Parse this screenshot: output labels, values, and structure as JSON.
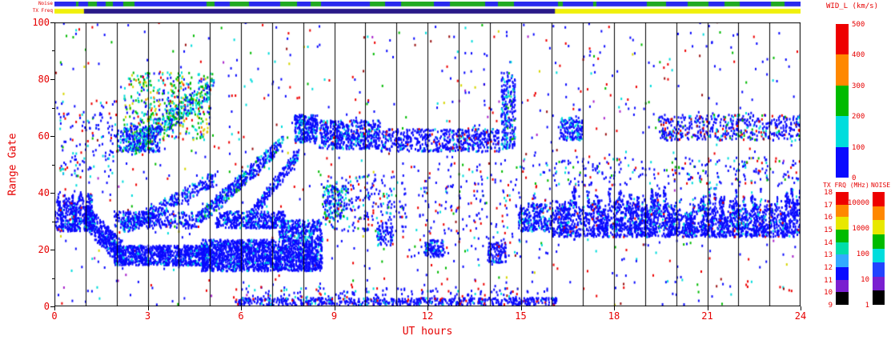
{
  "colors": {
    "text": "#e60000",
    "grid": "#000000",
    "bg": "#ffffff"
  },
  "palette": {
    "blue": "#0a0aff",
    "cyan": "#00dddd",
    "green": "#00bb00",
    "yellow": "#d6d600",
    "orange": "#ff8800",
    "red": "#ee0000",
    "darkred": "#991111",
    "purple": "#aa22cc",
    "black": "#000000",
    "lightblue": "#3377ff"
  },
  "strips": {
    "noise": {
      "label": "Noise",
      "base": "#2a2aee",
      "speckle": "#22aa22",
      "speckle_prob": 0.33
    },
    "txfreq": {
      "label": "TX Freq",
      "base": "#f0f00c",
      "segments": [
        {
          "t0": 0.95,
          "t1": 16.1,
          "color": "#2a1a88"
        }
      ]
    }
  },
  "chart_data": {
    "type": "scatter",
    "title": "WID_L (km/s)",
    "xlabel": "UT hours",
    "ylabel": "Range Gate",
    "xlim": [
      0,
      24
    ],
    "ylim": [
      0,
      100
    ],
    "xticks": [
      0,
      3,
      6,
      9,
      12,
      15,
      18,
      21,
      24
    ],
    "yticks": [
      0,
      20,
      40,
      60,
      80,
      100
    ],
    "grid": "vertical black line every 1 hour, full plot height",
    "legend_position": "right colorbars",
    "seed": 7,
    "point_size": [
      2,
      3
    ],
    "colorbars": {
      "wid": {
        "title": "WID_L (km/s)",
        "units": "km/s",
        "segments_top_to_bottom": [
          "#ee0000",
          "#ff8800",
          "#00bb00",
          "#00dddd",
          "#0a0aff"
        ],
        "ticks": [
          {
            "label": "500",
            "pos": 0.0
          },
          {
            "label": "400",
            "pos": 0.2
          },
          {
            "label": "300",
            "pos": 0.4
          },
          {
            "label": "200",
            "pos": 0.6
          },
          {
            "label": "100",
            "pos": 0.8
          },
          {
            "label": "0",
            "pos": 1.0
          }
        ]
      },
      "txfrq": {
        "title": "TX FRQ (MHz)",
        "units": "MHz",
        "segments_top_to_bottom": [
          "#ee0000",
          "#ff8800",
          "#e8e800",
          "#00bb00",
          "#00ddaa",
          "#33aaff",
          "#0a0aff",
          "#7a1fd0",
          "#000000"
        ],
        "ticks": [
          {
            "label": "18",
            "pos": 0.0
          },
          {
            "label": "17",
            "pos": 0.111
          },
          {
            "label": "16",
            "pos": 0.222
          },
          {
            "label": "15",
            "pos": 0.333
          },
          {
            "label": "14",
            "pos": 0.444
          },
          {
            "label": "13",
            "pos": 0.556
          },
          {
            "label": "12",
            "pos": 0.667
          },
          {
            "label": "11",
            "pos": 0.778
          },
          {
            "label": "10",
            "pos": 0.889
          },
          {
            "label": "9",
            "pos": 1.0
          }
        ]
      },
      "noise": {
        "title": "NOISE",
        "units": "",
        "segments_top_to_bottom": [
          "#ee0000",
          "#ff8800",
          "#e8e800",
          "#00bb00",
          "#00dddd",
          "#2244ff",
          "#7a1fd0",
          "#000000"
        ],
        "ticks": [
          {
            "label": "10000",
            "pos": 0.09
          },
          {
            "label": "1000",
            "pos": 0.3175
          },
          {
            "label": "100",
            "pos": 0.545
          },
          {
            "label": "10",
            "pos": 0.7725
          },
          {
            "label": "1",
            "pos": 1.0
          }
        ]
      }
    },
    "features": [
      {
        "id": "background-sparse",
        "t0": 0,
        "t1": 24,
        "g0": 0,
        "g1": 100,
        "n": 950,
        "colors": {
          "blue": 0.5,
          "red": 0.2,
          "cyan": 0.1,
          "green": 0.08,
          "darkred": 0.06,
          "yellow": 0.03,
          "purple": 0.03
        }
      },
      {
        "id": "band-early",
        "type": "columns",
        "t0": 0,
        "t1": 1.15,
        "g0": 26,
        "g1": 41,
        "n": 420,
        "colors": {
          "blue": 0.85,
          "cyan": 0.1,
          "red": 0.05
        }
      },
      {
        "id": "descend-1-2h",
        "type": "diag",
        "t0": 1.0,
        "t1": 2.15,
        "g0": 31,
        "g1": 18,
        "thick": 9,
        "n": 420,
        "colors": {
          "blue": 0.9,
          "cyan": 0.1
        }
      },
      {
        "id": "low-band-2-5h",
        "t0": 1.9,
        "t1": 4.9,
        "g0": 14,
        "g1": 21,
        "n": 850,
        "colors": {
          "blue": 0.92,
          "cyan": 0.08
        }
      },
      {
        "id": "low-blob-5-8.6h",
        "t0": 4.7,
        "t1": 8.6,
        "g0": 12,
        "g1": 23,
        "n": 1750,
        "colors": {
          "blue": 0.93,
          "cyan": 0.07
        }
      },
      {
        "id": "blob-tail-7-8.6h",
        "t0": 7.2,
        "t1": 8.6,
        "g0": 23,
        "g1": 30,
        "n": 260,
        "colors": {
          "blue": 0.8,
          "cyan": 0.2
        }
      },
      {
        "id": "mid-band-2-4.6h",
        "t0": 1.9,
        "t1": 4.6,
        "g0": 27,
        "g1": 33,
        "n": 280,
        "colors": {
          "blue": 0.85,
          "cyan": 0.15
        }
      },
      {
        "id": "mid-band-5-7.4h",
        "t0": 5.2,
        "t1": 7.4,
        "g0": 27,
        "g1": 33,
        "n": 380,
        "colors": {
          "blue": 0.88,
          "cyan": 0.12
        }
      },
      {
        "id": "diag-a",
        "type": "diag",
        "t0": 2.2,
        "t1": 5.2,
        "g0": 27,
        "g1": 45,
        "thick": 5,
        "n": 300,
        "colors": {
          "blue": 0.8,
          "cyan": 0.2
        }
      },
      {
        "id": "diag-b",
        "type": "diag",
        "t0": 4.6,
        "t1": 7.3,
        "g0": 30,
        "g1": 57,
        "thick": 5,
        "n": 420,
        "colors": {
          "blue": 0.75,
          "cyan": 0.2,
          "green": 0.05
        }
      },
      {
        "id": "diag-c",
        "type": "diag",
        "t0": 6.2,
        "t1": 7.8,
        "g0": 30,
        "g1": 53,
        "thick": 4,
        "n": 220,
        "colors": {
          "blue": 0.85,
          "cyan": 0.15
        }
      },
      {
        "id": "colorful-patch-3-5h",
        "t0": 2.2,
        "t1": 5.0,
        "g0": 58,
        "g1": 82,
        "n": 430,
        "colors": {
          "cyan": 0.26,
          "green": 0.3,
          "blue": 0.16,
          "red": 0.08,
          "yellow": 0.13,
          "orange": 0.07
        }
      },
      {
        "id": "diag-d",
        "type": "diag",
        "t0": 2.5,
        "t1": 5.1,
        "g0": 56,
        "g1": 77,
        "thick": 7,
        "n": 300,
        "colors": {
          "blue": 0.4,
          "cyan": 0.35,
          "green": 0.25
        }
      },
      {
        "id": "block-2-3.4h-60",
        "t0": 2.0,
        "t1": 3.4,
        "g0": 54,
        "g1": 63,
        "n": 260,
        "colors": {
          "blue": 0.7,
          "cyan": 0.25,
          "green": 0.05
        }
      },
      {
        "id": "left-sparse-high",
        "t0": 0.1,
        "t1": 2.0,
        "g0": 45,
        "g1": 72,
        "n": 130,
        "colors": {
          "blue": 0.6,
          "cyan": 0.25,
          "red": 0.1,
          "green": 0.05
        }
      },
      {
        "id": "blob-8h-62",
        "t0": 7.7,
        "t1": 8.45,
        "g0": 57,
        "g1": 67,
        "n": 260,
        "colors": {
          "blue": 0.8,
          "cyan": 0.2
        }
      },
      {
        "id": "band-8.5-10.4h-60",
        "t0": 8.5,
        "t1": 10.45,
        "g0": 55,
        "g1": 65,
        "n": 500,
        "colors": {
          "blue": 0.85,
          "cyan": 0.13,
          "red": 0.02
        }
      },
      {
        "id": "band-10.5-14.3h-58",
        "t0": 10.5,
        "t1": 14.3,
        "g0": 54,
        "g1": 62,
        "n": 540,
        "colors": {
          "blue": 0.86,
          "cyan": 0.1,
          "red": 0.04
        }
      },
      {
        "id": "streak-14.5h",
        "t0": 14.35,
        "t1": 14.8,
        "g0": 55,
        "g1": 82,
        "n": 230,
        "colors": {
          "blue": 0.7,
          "cyan": 0.25,
          "green": 0.05
        }
      },
      {
        "id": "cluster-8.6-9.4h-35",
        "t0": 8.6,
        "t1": 9.4,
        "g0": 30,
        "g1": 42,
        "n": 150,
        "colors": {
          "blue": 0.6,
          "cyan": 0.25,
          "green": 0.15
        }
      },
      {
        "id": "mid-scatter-9-11h",
        "t0": 8.7,
        "t1": 11.3,
        "g0": 26,
        "g1": 46,
        "n": 200,
        "colors": {
          "blue": 0.72,
          "cyan": 0.1,
          "red": 0.12,
          "green": 0.06
        }
      },
      {
        "id": "mid-scatter-11.5-16h",
        "t0": 11.5,
        "t1": 16.0,
        "g0": 18,
        "g1": 50,
        "n": 190,
        "colors": {
          "blue": 0.68,
          "red": 0.16,
          "cyan": 0.1,
          "green": 0.06
        }
      },
      {
        "id": "bottom-row-6-16h",
        "t0": 5.8,
        "t1": 16.2,
        "g0": 0,
        "g1": 2.5,
        "n": 620,
        "colors": {
          "blue": 0.85,
          "red": 0.07,
          "cyan": 0.08
        }
      },
      {
        "id": "bottom-speckle",
        "t0": 6.0,
        "t1": 16.0,
        "g0": 2.5,
        "g1": 6,
        "n": 120,
        "colors": {
          "blue": 0.7,
          "red": 0.15,
          "cyan": 0.15
        }
      },
      {
        "id": "blob-12h-20",
        "t0": 11.9,
        "t1": 12.5,
        "g0": 17,
        "g1": 23,
        "n": 110,
        "colors": {
          "blue": 0.9,
          "cyan": 0.1
        }
      },
      {
        "id": "blob-14h-18",
        "t0": 13.9,
        "t1": 14.5,
        "g0": 15,
        "g1": 22,
        "n": 110,
        "colors": {
          "blue": 0.85,
          "red": 0.1,
          "cyan": 0.05
        }
      },
      {
        "id": "blob-10.6h-25",
        "t0": 10.35,
        "t1": 10.85,
        "g0": 21,
        "g1": 29,
        "n": 80,
        "colors": {
          "blue": 0.9,
          "cyan": 0.1
        }
      },
      {
        "id": "pre-right-band-15-16h",
        "t0": 14.9,
        "t1": 16.0,
        "g0": 26,
        "g1": 36,
        "n": 240,
        "colors": {
          "blue": 0.85,
          "cyan": 0.15
        }
      },
      {
        "id": "right-main-band-16-24h",
        "type": "columns",
        "t0": 16.0,
        "t1": 24.0,
        "g0": 24,
        "g1": 42,
        "n": 2700,
        "colors": {
          "blue": 0.9,
          "cyan": 0.08,
          "red": 0.02
        }
      },
      {
        "id": "right-upper-speckle",
        "t0": 16.0,
        "t1": 24.0,
        "g0": 42,
        "g1": 52,
        "n": 240,
        "colors": {
          "blue": 0.68,
          "cyan": 0.1,
          "red": 0.13,
          "green": 0.09
        }
      },
      {
        "id": "right-top-band-19.5-24h",
        "t0": 19.4,
        "t1": 24.0,
        "g0": 58,
        "g1": 67,
        "n": 500,
        "colors": {
          "blue": 0.72,
          "cyan": 0.1,
          "red": 0.08,
          "green": 0.06,
          "darkred": 0.04
        }
      },
      {
        "id": "blob-16.5h-62",
        "t0": 16.25,
        "t1": 16.95,
        "g0": 58,
        "g1": 66,
        "n": 150,
        "colors": {
          "blue": 0.8,
          "cyan": 0.2
        }
      }
    ]
  }
}
